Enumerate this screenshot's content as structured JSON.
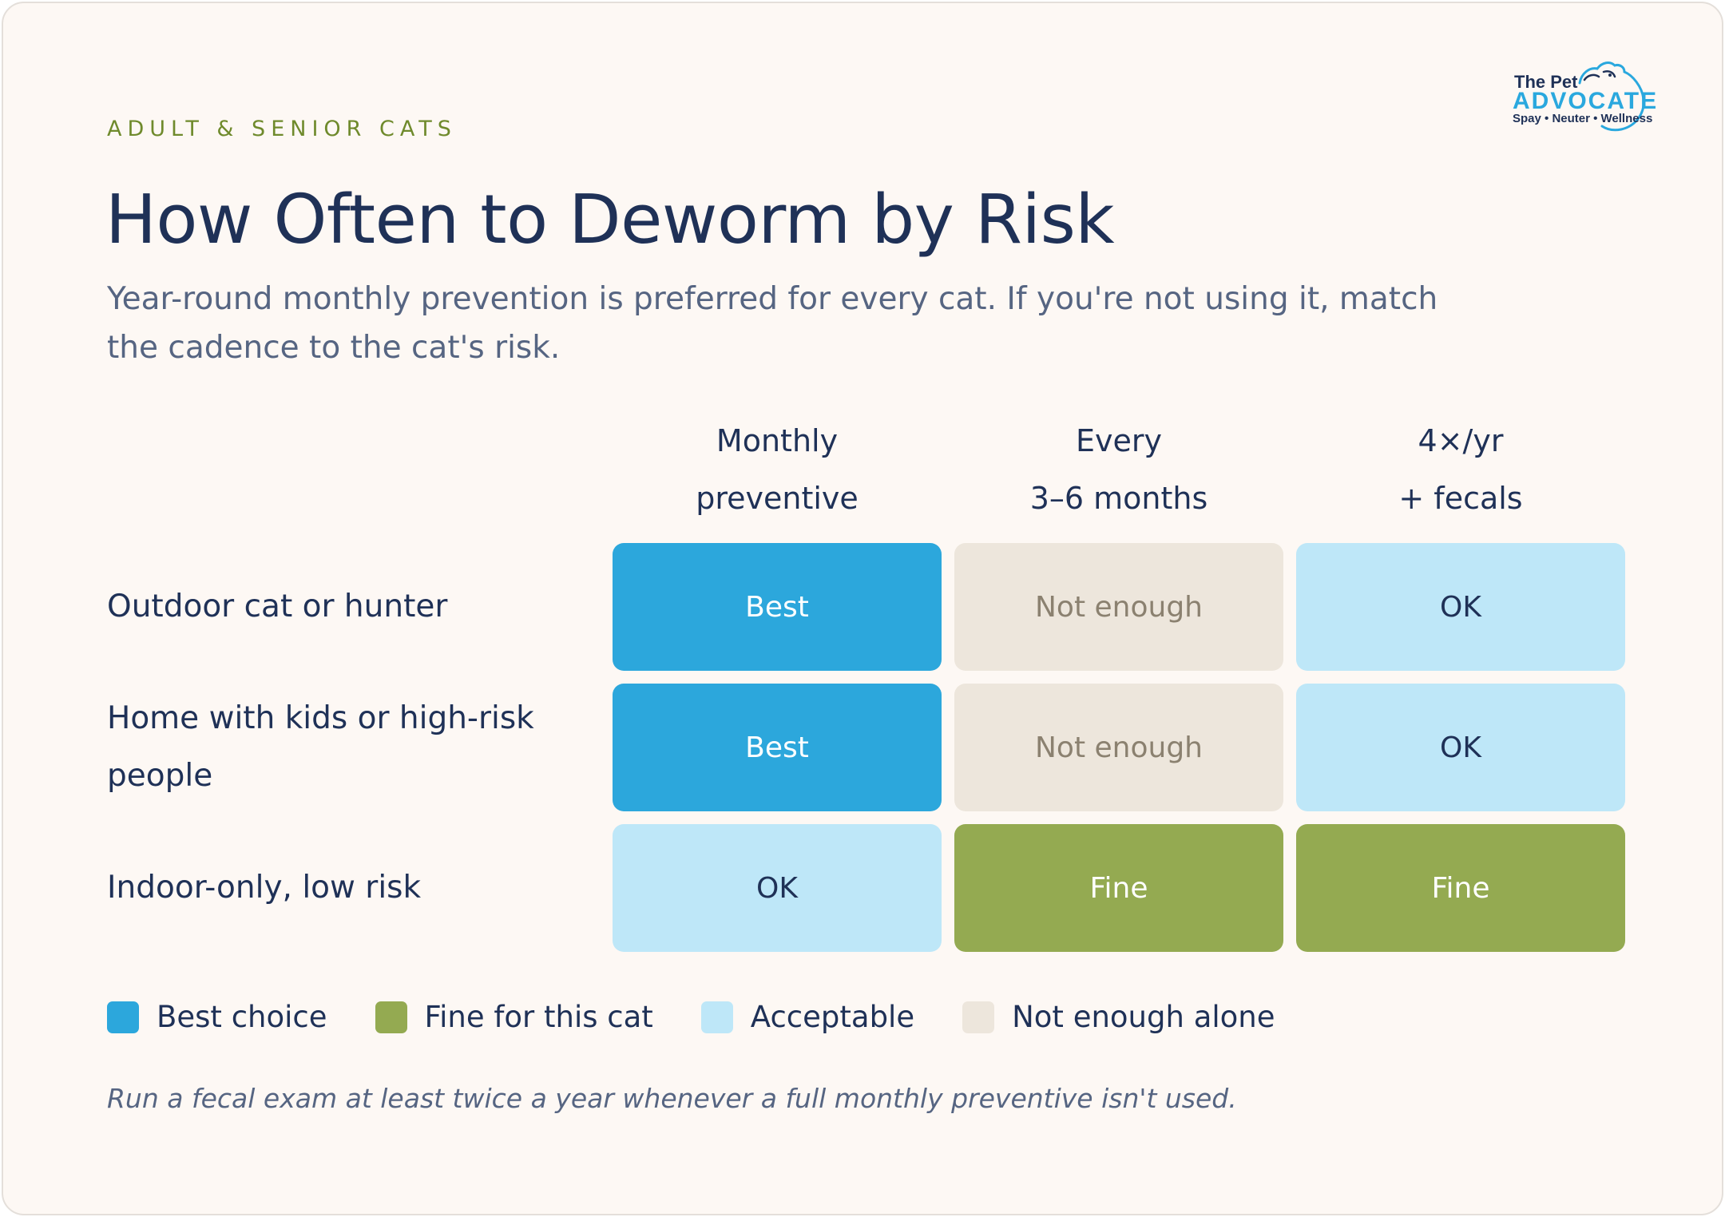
{
  "eyebrow": "ADULT & SENIOR CATS",
  "title": "How Often to Deworm by Risk",
  "subtitle": "Year-round monthly prevention is preferred for every cat. If you're not using it, match the cadence to the cat's risk.",
  "logo": {
    "line1": "The Pet",
    "line2": "ADVOCATE",
    "line3": "Spay • Neuter • Wellness"
  },
  "columns": [
    {
      "line1": "Monthly",
      "line2": "preventive"
    },
    {
      "line1": "Every",
      "line2": "3–6 months"
    },
    {
      "line1": "4×/yr",
      "line2": "+ fecals"
    }
  ],
  "rows": [
    {
      "label": "Outdoor cat or hunter",
      "cells": [
        {
          "text": "Best",
          "level": "best"
        },
        {
          "text": "Not enough",
          "level": "none"
        },
        {
          "text": "OK",
          "level": "ok"
        }
      ]
    },
    {
      "label": "Home with kids or high-risk people",
      "cells": [
        {
          "text": "Best",
          "level": "best"
        },
        {
          "text": "Not enough",
          "level": "none"
        },
        {
          "text": "OK",
          "level": "ok"
        }
      ]
    },
    {
      "label": "Indoor-only, low risk",
      "cells": [
        {
          "text": "OK",
          "level": "ok"
        },
        {
          "text": "Fine",
          "level": "fine"
        },
        {
          "text": "Fine",
          "level": "fine"
        }
      ]
    }
  ],
  "legend": [
    {
      "label": "Best choice",
      "color": "#2ca7dc"
    },
    {
      "label": "Fine for this cat",
      "color": "#94aa51"
    },
    {
      "label": "Acceptable",
      "color": "#bee7f8"
    },
    {
      "label": "Not enough alone",
      "color": "#ede6dc"
    }
  ],
  "footnote": "Run a fecal exam at least twice a year whenever a full monthly preventive isn't used."
}
